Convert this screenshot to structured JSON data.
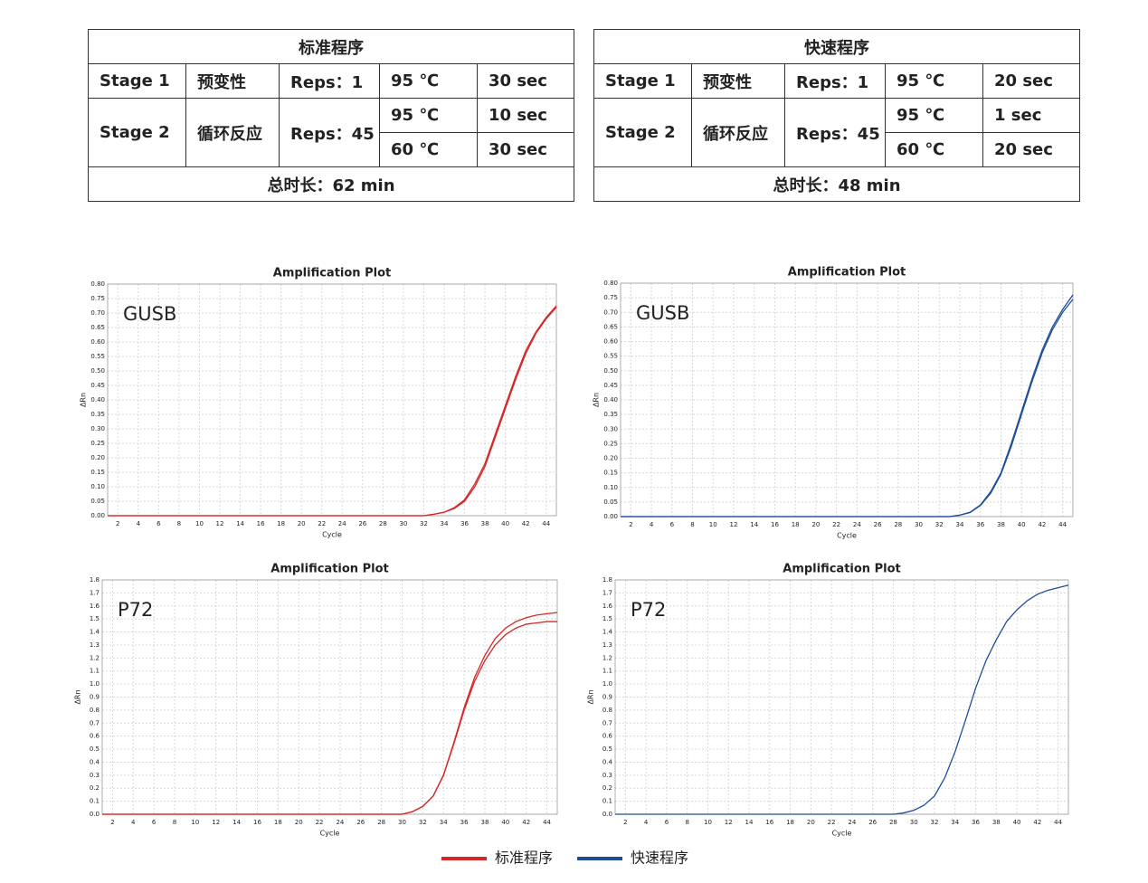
{
  "tables": [
    {
      "title": "标准程序",
      "rows": [
        [
          "Stage 1",
          "预变性",
          "Reps：1",
          "95 ℃",
          "30 sec"
        ],
        [
          "Stage 2",
          "循环反应",
          "Reps：45",
          "95 ℃",
          "10 sec"
        ],
        [
          "60 ℃",
          "30 sec"
        ]
      ],
      "total": "总时长：62 min"
    },
    {
      "title": "快速程序",
      "rows": [
        [
          "Stage 1",
          "预变性",
          "Reps：1",
          "95 ℃",
          "20 sec"
        ],
        [
          "Stage 2",
          "循环反应",
          "Reps：45",
          "95 ℃",
          "1 sec"
        ],
        [
          "60 ℃",
          "20 sec"
        ]
      ],
      "total": "总时长：48 min"
    }
  ],
  "chart_data": [
    {
      "type": "line",
      "title": "Amplification Plot",
      "annotation": "GUSB",
      "x_label": "Cycle",
      "y_label": "ΔRn",
      "x": [
        1,
        2,
        3,
        4,
        5,
        6,
        7,
        8,
        9,
        10,
        11,
        12,
        13,
        14,
        15,
        16,
        17,
        18,
        19,
        20,
        21,
        22,
        23,
        24,
        25,
        26,
        27,
        28,
        29,
        30,
        31,
        32,
        33,
        34,
        35,
        36,
        37,
        38,
        39,
        40,
        41,
        42,
        43,
        44,
        45
      ],
      "xlim": [
        1,
        45
      ],
      "xticks": [
        2,
        4,
        6,
        8,
        10,
        12,
        14,
        16,
        18,
        20,
        22,
        24,
        26,
        28,
        30,
        32,
        34,
        36,
        38,
        40,
        42,
        44
      ],
      "ylim": [
        0,
        0.8
      ],
      "yticks": [
        {
          "value": 0,
          "label": "0.00"
        },
        0.05,
        {
          "value": 0.1,
          "label": "0.10"
        },
        0.15,
        {
          "value": 0.2,
          "label": "0.20"
        },
        0.25,
        {
          "value": 0.3,
          "label": "0.30"
        },
        0.35,
        {
          "value": 0.4,
          "label": "0.40"
        },
        0.45,
        {
          "value": 0.5,
          "label": "0.50"
        },
        0.55,
        {
          "value": 0.6,
          "label": "0.60"
        },
        0.65,
        {
          "value": 0.7,
          "label": "0.70"
        },
        0.75,
        {
          "value": 0.8,
          "label": "0.80"
        }
      ],
      "grid": true,
      "series": [
        {
          "name": "标准程序",
          "color": "#d62728",
          "values": [
            0,
            0,
            0,
            0,
            0,
            0,
            0,
            0,
            0,
            0,
            0,
            0,
            0,
            0,
            0,
            0,
            0,
            0,
            0,
            0,
            0,
            0,
            0,
            0,
            0,
            0,
            0,
            0,
            0,
            0,
            0,
            0,
            0.005,
            0.012,
            0.025,
            0.05,
            0.1,
            0.17,
            0.27,
            0.37,
            0.47,
            0.56,
            0.63,
            0.68,
            0.72
          ]
        },
        {
          "color": "#d62728",
          "values": [
            0,
            0,
            0,
            0,
            0,
            0,
            0,
            0,
            0,
            0,
            0,
            0,
            0,
            0,
            0,
            0,
            0,
            0,
            0,
            0,
            0,
            0,
            0,
            0,
            0,
            0,
            0,
            0,
            0,
            0,
            0,
            0,
            0.005,
            0.012,
            0.028,
            0.055,
            0.11,
            0.18,
            0.28,
            0.38,
            0.48,
            0.57,
            0.635,
            0.685,
            0.725
          ]
        }
      ]
    },
    {
      "type": "line",
      "title": "Amplification Plot",
      "annotation": "GUSB",
      "x_label": "Cycle",
      "y_label": "ΔRn",
      "x": [
        1,
        2,
        3,
        4,
        5,
        6,
        7,
        8,
        9,
        10,
        11,
        12,
        13,
        14,
        15,
        16,
        17,
        18,
        19,
        20,
        21,
        22,
        23,
        24,
        25,
        26,
        27,
        28,
        29,
        30,
        31,
        32,
        33,
        34,
        35,
        36,
        37,
        38,
        39,
        40,
        41,
        42,
        43,
        44,
        45
      ],
      "xlim": [
        1,
        45
      ],
      "xticks": [
        2,
        4,
        6,
        8,
        10,
        12,
        14,
        16,
        18,
        20,
        22,
        24,
        26,
        28,
        30,
        32,
        34,
        36,
        38,
        40,
        42,
        44
      ],
      "ylim": [
        0,
        0.8
      ],
      "yticks": [
        {
          "value": 0,
          "label": "0.00"
        },
        0.05,
        {
          "value": 0.1,
          "label": "0.10"
        },
        0.15,
        {
          "value": 0.2,
          "label": "0.20"
        },
        0.25,
        {
          "value": 0.3,
          "label": "0.30"
        },
        0.35,
        {
          "value": 0.4,
          "label": "0.40"
        },
        0.45,
        {
          "value": 0.5,
          "label": "0.50"
        },
        0.55,
        {
          "value": 0.6,
          "label": "0.60"
        },
        0.65,
        {
          "value": 0.7,
          "label": "0.70"
        },
        0.75,
        {
          "value": 0.8,
          "label": "0.80"
        }
      ],
      "grid": true,
      "series": [
        {
          "name": "快速程序",
          "color": "#1f4e99",
          "values": [
            0,
            0,
            0,
            0,
            0,
            0,
            0,
            0,
            0,
            0,
            0,
            0,
            0,
            0,
            0,
            0,
            0,
            0,
            0,
            0,
            0,
            0,
            0,
            0,
            0,
            0,
            0,
            0,
            0,
            0,
            0,
            0,
            0,
            0.005,
            0.015,
            0.04,
            0.085,
            0.15,
            0.25,
            0.36,
            0.47,
            0.57,
            0.65,
            0.71,
            0.76
          ]
        },
        {
          "color": "#1f4e99",
          "values": [
            0,
            0,
            0,
            0,
            0,
            0,
            0,
            0,
            0,
            0,
            0,
            0,
            0,
            0,
            0,
            0,
            0,
            0,
            0,
            0,
            0,
            0,
            0,
            0,
            0,
            0,
            0,
            0,
            0,
            0,
            0,
            0,
            0,
            0.005,
            0.014,
            0.038,
            0.08,
            0.145,
            0.24,
            0.35,
            0.46,
            0.56,
            0.64,
            0.7,
            0.745
          ]
        }
      ]
    },
    {
      "type": "line",
      "title": "Amplification Plot",
      "annotation": "P72",
      "x_label": "Cycle",
      "y_label": "ΔRn",
      "x": [
        1,
        2,
        3,
        4,
        5,
        6,
        7,
        8,
        9,
        10,
        11,
        12,
        13,
        14,
        15,
        16,
        17,
        18,
        19,
        20,
        21,
        22,
        23,
        24,
        25,
        26,
        27,
        28,
        29,
        30,
        31,
        32,
        33,
        34,
        35,
        36,
        37,
        38,
        39,
        40,
        41,
        42,
        43,
        44,
        45
      ],
      "xlim": [
        1,
        45
      ],
      "xticks": [
        2,
        4,
        6,
        8,
        10,
        12,
        14,
        16,
        18,
        20,
        22,
        24,
        26,
        28,
        30,
        32,
        34,
        36,
        38,
        40,
        42,
        44
      ],
      "ylim": [
        0,
        1.8
      ],
      "yticks": [
        {
          "value": 0,
          "label": "0.0"
        },
        0.1,
        0.2,
        0.3,
        0.4,
        0.5,
        0.6,
        0.7,
        0.8,
        0.9,
        {
          "value": 1,
          "label": "1.0"
        },
        1.1,
        1.2,
        1.3,
        1.4,
        1.5,
        1.6,
        1.7,
        1.8
      ],
      "grid": true,
      "series": [
        {
          "color": "#d62728",
          "values": [
            0,
            0,
            0,
            0,
            0,
            0,
            0,
            0,
            0,
            0,
            0,
            0,
            0,
            0,
            0,
            0,
            0,
            0,
            0,
            0,
            0,
            0,
            0,
            0,
            0,
            0,
            0,
            0,
            0,
            0,
            0.02,
            0.06,
            0.14,
            0.3,
            0.55,
            0.82,
            1.05,
            1.22,
            1.35,
            1.43,
            1.48,
            1.51,
            1.53,
            1.54,
            1.55
          ]
        },
        {
          "color": "#d62728",
          "values": [
            0,
            0,
            0,
            0,
            0,
            0,
            0,
            0,
            0,
            0,
            0,
            0,
            0,
            0,
            0,
            0,
            0,
            0,
            0,
            0,
            0,
            0,
            0,
            0,
            0,
            0,
            0,
            0,
            0,
            0,
            0.02,
            0.06,
            0.14,
            0.3,
            0.54,
            0.8,
            1.02,
            1.18,
            1.3,
            1.38,
            1.43,
            1.46,
            1.47,
            1.48,
            1.48
          ]
        }
      ]
    },
    {
      "type": "line",
      "title": "Amplification Plot",
      "annotation": "P72",
      "x_label": "Cycle",
      "y_label": "ΔRn",
      "x": [
        1,
        2,
        3,
        4,
        5,
        6,
        7,
        8,
        9,
        10,
        11,
        12,
        13,
        14,
        15,
        16,
        17,
        18,
        19,
        20,
        21,
        22,
        23,
        24,
        25,
        26,
        27,
        28,
        29,
        30,
        31,
        32,
        33,
        34,
        35,
        36,
        37,
        38,
        39,
        40,
        41,
        42,
        43,
        44,
        45
      ],
      "xlim": [
        1,
        45
      ],
      "xticks": [
        2,
        4,
        6,
        8,
        10,
        12,
        14,
        16,
        18,
        20,
        22,
        24,
        26,
        28,
        30,
        32,
        34,
        36,
        38,
        40,
        42,
        44
      ],
      "ylim": [
        0,
        1.8
      ],
      "yticks": [
        {
          "value": 0,
          "label": "0.0"
        },
        0.1,
        0.2,
        0.3,
        0.4,
        0.5,
        0.6,
        0.7,
        0.8,
        0.9,
        {
          "value": 1,
          "label": "1.0"
        },
        1.1,
        1.2,
        1.3,
        1.4,
        1.5,
        1.6,
        1.7,
        1.8
      ],
      "grid": true,
      "series": [
        {
          "color": "#1f4e99",
          "values": [
            0,
            0,
            0,
            0,
            0,
            0,
            0,
            0,
            0,
            0,
            0,
            0,
            0,
            0,
            0,
            0,
            0,
            0,
            0,
            0,
            0,
            0,
            0,
            0,
            0,
            0,
            0,
            0,
            0.01,
            0.03,
            0.07,
            0.14,
            0.28,
            0.48,
            0.72,
            0.97,
            1.18,
            1.34,
            1.48,
            1.57,
            1.64,
            1.69,
            1.72,
            1.74,
            1.76
          ]
        }
      ]
    }
  ]
}
